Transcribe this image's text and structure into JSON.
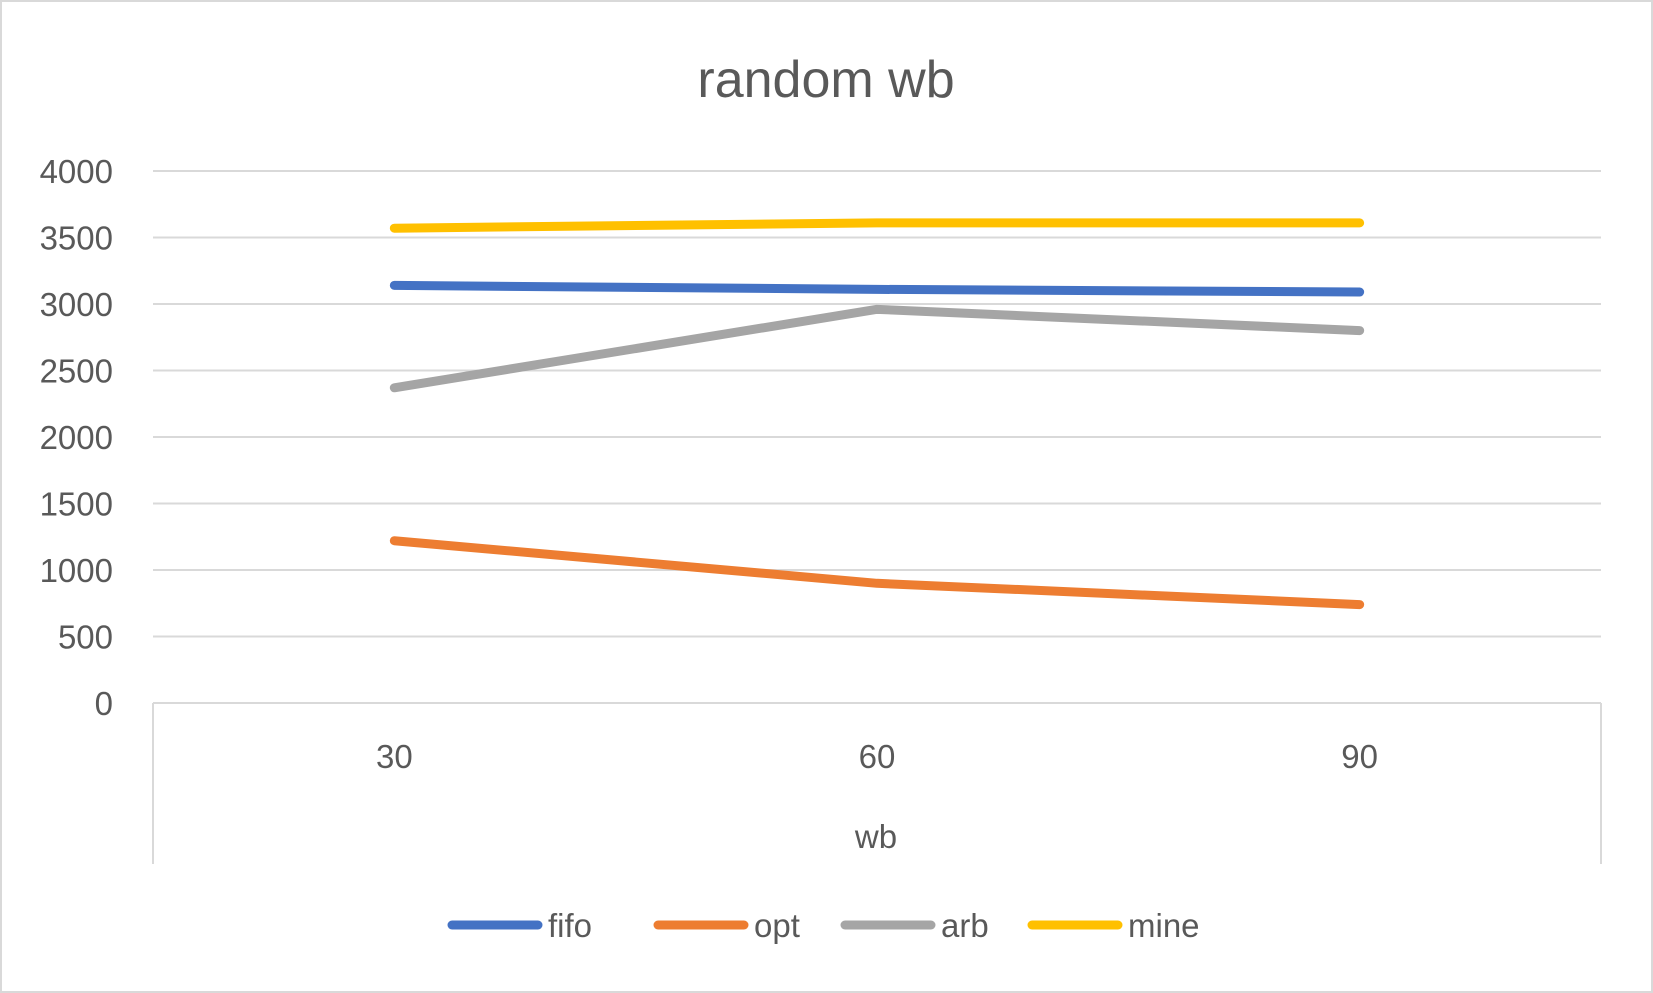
{
  "chart_data": {
    "type": "line",
    "title": "random wb",
    "xlabel": "wb",
    "ylabel": "",
    "categories": [
      "30",
      "60",
      "90"
    ],
    "ylim": [
      0,
      4000
    ],
    "yticks": [
      0,
      500,
      1000,
      1500,
      2000,
      2500,
      3000,
      3500,
      4000
    ],
    "grid": true,
    "legend_position": "bottom",
    "series": [
      {
        "name": "fifo",
        "color": "#4472C4",
        "values": [
          3140,
          3110,
          3090
        ]
      },
      {
        "name": "opt",
        "color": "#ED7D31",
        "values": [
          1220,
          900,
          740
        ]
      },
      {
        "name": "arb",
        "color": "#A5A5A5",
        "values": [
          2370,
          2960,
          2800
        ]
      },
      {
        "name": "mine",
        "color": "#FFC000",
        "values": [
          3570,
          3610,
          3610
        ]
      }
    ]
  }
}
